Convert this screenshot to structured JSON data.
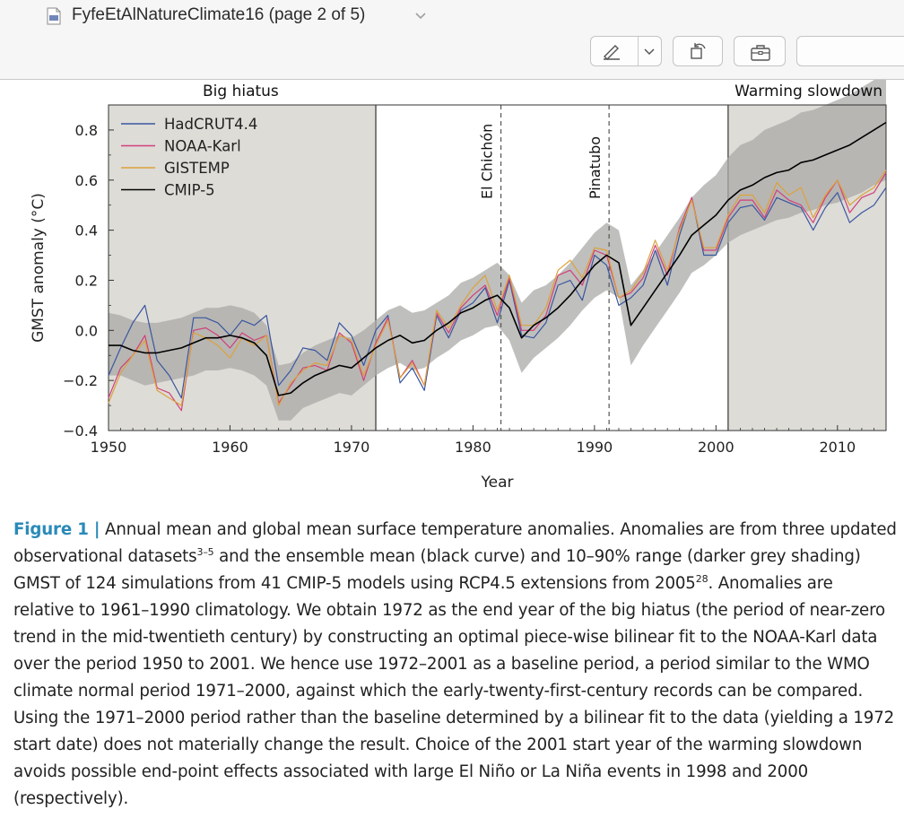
{
  "window": {
    "title": "FyfeEtAlNatureClimate16 (page 2 of 5)"
  },
  "toolbar": {
    "buttons": [
      "markup-pen",
      "markup-options-chevron",
      "rotate-left",
      "toolbox",
      "search-field"
    ]
  },
  "chart_data": {
    "type": "line",
    "title": "",
    "xlabel": "Year",
    "ylabel": "GMST anomaly (°C)",
    "xlim": [
      1950,
      2014
    ],
    "ylim": [
      -0.4,
      0.9
    ],
    "xticks": [
      "1950",
      "1960",
      "1970",
      "1980",
      "1990",
      "2000",
      "2010"
    ],
    "yticks": [
      "−0.4",
      "−0.2",
      "0.0",
      "0.2",
      "0.4",
      "0.6",
      "0.8"
    ],
    "x": [
      1950,
      1951,
      1952,
      1953,
      1954,
      1955,
      1956,
      1957,
      1958,
      1959,
      1960,
      1961,
      1962,
      1963,
      1964,
      1965,
      1966,
      1967,
      1968,
      1969,
      1970,
      1971,
      1972,
      1973,
      1974,
      1975,
      1976,
      1977,
      1978,
      1979,
      1980,
      1981,
      1982,
      1983,
      1984,
      1985,
      1986,
      1987,
      1988,
      1989,
      1990,
      1991,
      1992,
      1993,
      1994,
      1995,
      1996,
      1997,
      1998,
      1999,
      2000,
      2001,
      2002,
      2003,
      2004,
      2005,
      2006,
      2007,
      2008,
      2009,
      2010,
      2011,
      2012,
      2013,
      2014
    ],
    "series": [
      {
        "name": "HadCRUT4.4",
        "color": "#3a56a0",
        "values": [
          -0.18,
          -0.07,
          0.03,
          0.1,
          -0.12,
          -0.18,
          -0.27,
          0.05,
          0.05,
          0.03,
          -0.02,
          0.04,
          0.02,
          0.06,
          -0.22,
          -0.16,
          -0.07,
          -0.08,
          -0.12,
          0.03,
          -0.02,
          -0.14,
          0.0,
          0.06,
          -0.21,
          -0.15,
          -0.24,
          0.06,
          -0.03,
          0.08,
          0.11,
          0.17,
          0.03,
          0.2,
          -0.02,
          -0.03,
          0.03,
          0.18,
          0.2,
          0.12,
          0.3,
          0.26,
          0.1,
          0.13,
          0.18,
          0.32,
          0.18,
          0.38,
          0.53,
          0.3,
          0.3,
          0.43,
          0.49,
          0.5,
          0.44,
          0.53,
          0.51,
          0.49,
          0.4,
          0.49,
          0.55,
          0.43,
          0.47,
          0.5,
          0.57
        ]
      },
      {
        "name": "NOAA-Karl",
        "color": "#d23f7a",
        "values": [
          -0.27,
          -0.15,
          -0.1,
          -0.02,
          -0.23,
          -0.25,
          -0.32,
          0.0,
          0.01,
          -0.02,
          -0.07,
          -0.01,
          -0.04,
          -0.02,
          -0.29,
          -0.22,
          -0.15,
          -0.14,
          -0.16,
          -0.01,
          -0.05,
          -0.2,
          -0.05,
          0.05,
          -0.19,
          -0.12,
          -0.22,
          0.07,
          -0.01,
          0.09,
          0.14,
          0.18,
          0.06,
          0.21,
          0.0,
          0.0,
          0.06,
          0.22,
          0.24,
          0.18,
          0.32,
          0.3,
          0.13,
          0.15,
          0.21,
          0.34,
          0.22,
          0.41,
          0.53,
          0.32,
          0.32,
          0.45,
          0.52,
          0.52,
          0.45,
          0.56,
          0.52,
          0.5,
          0.43,
          0.53,
          0.6,
          0.47,
          0.53,
          0.55,
          0.63
        ]
      },
      {
        "name": "GISTEMP",
        "color": "#dca23a",
        "values": [
          -0.29,
          -0.17,
          -0.1,
          -0.04,
          -0.24,
          -0.27,
          -0.3,
          -0.01,
          -0.03,
          -0.06,
          -0.11,
          -0.03,
          -0.06,
          -0.02,
          -0.3,
          -0.21,
          -0.16,
          -0.13,
          -0.14,
          -0.02,
          -0.04,
          -0.18,
          -0.06,
          0.04,
          -0.19,
          -0.13,
          -0.22,
          0.08,
          0.01,
          0.1,
          0.17,
          0.22,
          0.08,
          0.22,
          0.02,
          0.02,
          0.09,
          0.24,
          0.28,
          0.21,
          0.33,
          0.32,
          0.13,
          0.16,
          0.23,
          0.36,
          0.24,
          0.4,
          0.52,
          0.33,
          0.33,
          0.46,
          0.54,
          0.54,
          0.47,
          0.59,
          0.54,
          0.57,
          0.45,
          0.54,
          0.6,
          0.5,
          0.54,
          0.57,
          0.64
        ]
      },
      {
        "name": "CMIP-5",
        "color": "#000000",
        "values": [
          -0.06,
          -0.06,
          -0.08,
          -0.09,
          -0.09,
          -0.08,
          -0.07,
          -0.05,
          -0.03,
          -0.03,
          -0.02,
          -0.03,
          -0.05,
          -0.1,
          -0.26,
          -0.25,
          -0.21,
          -0.18,
          -0.16,
          -0.14,
          -0.15,
          -0.11,
          -0.07,
          -0.04,
          -0.02,
          -0.05,
          -0.04,
          0.0,
          0.03,
          0.07,
          0.09,
          0.12,
          0.14,
          0.09,
          -0.03,
          0.02,
          0.05,
          0.09,
          0.14,
          0.2,
          0.26,
          0.3,
          0.27,
          0.02,
          0.09,
          0.16,
          0.23,
          0.3,
          0.38,
          0.42,
          0.46,
          0.52,
          0.56,
          0.58,
          0.61,
          0.63,
          0.64,
          0.67,
          0.68,
          0.7,
          0.72,
          0.74,
          0.77,
          0.8,
          0.83
        ]
      }
    ],
    "ensemble_range": {
      "label": "10–90% range",
      "lower": [
        -0.18,
        -0.18,
        -0.2,
        -0.22,
        -0.21,
        -0.2,
        -0.19,
        -0.18,
        -0.16,
        -0.16,
        -0.15,
        -0.16,
        -0.18,
        -0.22,
        -0.36,
        -0.36,
        -0.31,
        -0.29,
        -0.27,
        -0.25,
        -0.26,
        -0.22,
        -0.18,
        -0.15,
        -0.13,
        -0.16,
        -0.15,
        -0.11,
        -0.08,
        -0.04,
        -0.02,
        0.01,
        0.02,
        -0.04,
        -0.17,
        -0.11,
        -0.07,
        -0.03,
        0.02,
        0.08,
        0.13,
        0.16,
        0.13,
        -0.14,
        -0.06,
        0.01,
        0.08,
        0.15,
        0.23,
        0.26,
        0.3,
        0.35,
        0.38,
        0.4,
        0.42,
        0.44,
        0.45,
        0.47,
        0.48,
        0.5,
        0.51,
        0.53,
        0.55,
        0.58,
        0.6
      ],
      "upper": [
        0.07,
        0.06,
        0.04,
        0.03,
        0.03,
        0.04,
        0.05,
        0.07,
        0.09,
        0.09,
        0.1,
        0.09,
        0.07,
        0.02,
        -0.14,
        -0.13,
        -0.09,
        -0.06,
        -0.04,
        -0.02,
        -0.03,
        0.0,
        0.04,
        0.08,
        0.1,
        0.07,
        0.08,
        0.11,
        0.14,
        0.19,
        0.21,
        0.24,
        0.27,
        0.22,
        0.11,
        0.16,
        0.18,
        0.22,
        0.27,
        0.33,
        0.39,
        0.43,
        0.4,
        0.18,
        0.24,
        0.31,
        0.38,
        0.45,
        0.53,
        0.58,
        0.62,
        0.69,
        0.74,
        0.76,
        0.8,
        0.82,
        0.84,
        0.87,
        0.88,
        0.9,
        0.92,
        0.94,
        0.97,
        1.0,
        1.03
      ]
    },
    "shaded_periods": [
      {
        "label": "Big hiatus",
        "start": 1950,
        "end": 1972
      },
      {
        "label": "Warming slowdown",
        "start": 2001,
        "end": 2014
      }
    ],
    "volcanoes": [
      {
        "label": "El Chichón",
        "year": 1982.3
      },
      {
        "label": "Pinatubo",
        "year": 1991.2
      }
    ],
    "legend_position": "top-left",
    "grid": false
  },
  "caption": {
    "label": "Figure 1 |",
    "text_1": " Annual mean and global mean surface temperature anomalies. Anomalies are from three updated observational datasets",
    "ref_1": "3–5",
    "text_2": " and the ensemble mean (black curve) and 10–90% range (darker grey shading) GMST of 124 simulations from 41 CMIP-5 models using RCP4.5 extensions from 2005",
    "ref_2": "28",
    "text_3": ". Anomalies are relative to 1961–1990 climatology. We obtain 1972 as the end year of the big hiatus (the period of near-zero trend in the mid-twentieth century) by constructing an optimal piece-wise bilinear fit to the NOAA-Karl data over the period 1950 to 2001. We hence use 1972–2001 as a baseline period, a period similar to the WMO climate normal period 1971–2000, against which the early-twenty-first-century records can be compared. Using the 1971–2000 period rather than the baseline determined by a bilinear fit to the data (yielding a 1972 start date) does not materially change the result. Choice of the 2001 start year of the warming slowdown avoids possible end-point effects associated with large El Niño or La Niña events in 1998 and 2000 (respectively)."
  }
}
